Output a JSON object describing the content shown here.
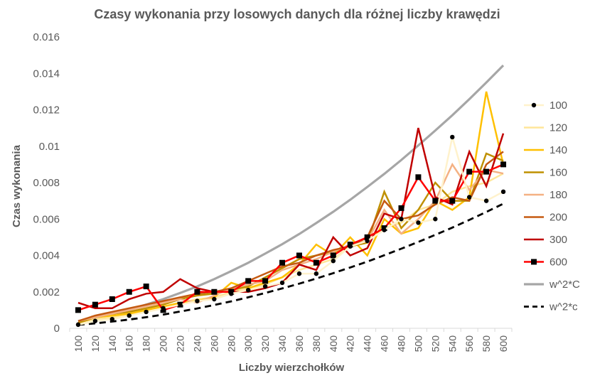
{
  "chart_data": {
    "type": "line",
    "title": "Czasy wykonania przy losowych danych dla różnej liczby krawędzi",
    "xlabel": "Liczby wierzchołków",
    "ylabel": "Czas wykonania",
    "ylim": [
      0,
      0.016
    ],
    "yticks": [
      "0",
      "0.002",
      "0.004",
      "0.006",
      "0.008",
      "0.01",
      "0.012",
      "0.014",
      "0.016"
    ],
    "yticks_values": [
      0,
      0.002,
      0.004,
      0.006,
      0.008,
      0.01,
      0.012,
      0.014,
      0.016
    ],
    "categories": [
      "100",
      "120",
      "140",
      "160",
      "180",
      "200",
      "220",
      "240",
      "260",
      "280",
      "300",
      "320",
      "340",
      "360",
      "380",
      "400",
      "420",
      "440",
      "460",
      "480",
      "500",
      "520",
      "540",
      "560",
      "580",
      "600"
    ],
    "grid": false,
    "legend_position": "right",
    "series": [
      {
        "name": "100",
        "color": "#000000",
        "style": "dots",
        "values": [
          0.0002,
          0.0004,
          0.0005,
          0.0007,
          0.0009,
          0.0011,
          0.0013,
          0.0015,
          0.0016,
          0.0019,
          0.0021,
          0.0023,
          0.0025,
          0.003,
          0.003,
          0.0037,
          0.0045,
          0.0048,
          0.0054,
          0.006,
          0.0058,
          0.006,
          0.0105,
          0.0072,
          0.007,
          0.0075
        ]
      },
      {
        "name": "120",
        "color": "#FFE699",
        "style": "line",
        "values": [
          0.0003,
          0.0005,
          0.0006,
          0.0008,
          0.0009,
          0.0011,
          0.0014,
          0.0016,
          0.0017,
          0.002,
          0.0022,
          0.0024,
          0.0028,
          0.0032,
          0.0035,
          0.0038,
          0.0045,
          0.0048,
          0.0055,
          0.0058,
          0.0065,
          0.0068,
          0.0075,
          0.0078,
          0.008,
          0.0085
        ]
      },
      {
        "name": "140",
        "color": "#FFC000",
        "style": "line",
        "values": [
          0.0003,
          0.0006,
          0.0007,
          0.0008,
          0.001,
          0.0012,
          0.0014,
          0.0015,
          0.0017,
          0.0025,
          0.0022,
          0.0025,
          0.0028,
          0.0035,
          0.0046,
          0.004,
          0.005,
          0.004,
          0.006,
          0.0052,
          0.0055,
          0.007,
          0.0065,
          0.0072,
          0.013,
          0.009
        ]
      },
      {
        "name": "160",
        "color": "#BF9000",
        "style": "line",
        "values": [
          0.0003,
          0.0006,
          0.0008,
          0.0009,
          0.0011,
          0.0013,
          0.0016,
          0.0018,
          0.0019,
          0.0021,
          0.0023,
          0.0028,
          0.0033,
          0.0038,
          0.004,
          0.0042,
          0.0045,
          0.0047,
          0.0075,
          0.0055,
          0.0065,
          0.008,
          0.007,
          0.007,
          0.0096,
          0.0092
        ]
      },
      {
        "name": "180",
        "color": "#F4B183",
        "style": "line",
        "values": [
          0.0004,
          0.0006,
          0.0008,
          0.001,
          0.0012,
          0.0014,
          0.0016,
          0.0014,
          0.0018,
          0.0022,
          0.0024,
          0.0026,
          0.0032,
          0.0035,
          0.0038,
          0.0042,
          0.0046,
          0.0048,
          0.0065,
          0.0052,
          0.006,
          0.007,
          0.009,
          0.0076,
          0.0087,
          0.0085
        ]
      },
      {
        "name": "200",
        "color": "#C55A11",
        "style": "line",
        "values": [
          0.0004,
          0.0007,
          0.0009,
          0.0011,
          0.0013,
          0.0015,
          0.0017,
          0.0019,
          0.002,
          0.0022,
          0.0026,
          0.003,
          0.0034,
          0.0036,
          0.004,
          0.0043,
          0.0045,
          0.005,
          0.007,
          0.006,
          0.0062,
          0.0068,
          0.0072,
          0.007,
          0.009,
          0.0097
        ]
      },
      {
        "name": "300",
        "color": "#C00000",
        "style": "line",
        "values": [
          0.0014,
          0.0011,
          0.0011,
          0.0016,
          0.0019,
          0.002,
          0.0027,
          0.0022,
          0.002,
          0.002,
          0.002,
          0.0022,
          0.0025,
          0.0035,
          0.0032,
          0.005,
          0.004,
          0.0044,
          0.0063,
          0.006,
          0.011,
          0.0072,
          0.0068,
          0.0097,
          0.0078,
          0.0107
        ]
      },
      {
        "name": "600",
        "color": "#FF0000",
        "style": "line-square",
        "values": [
          0.001,
          0.0013,
          0.0016,
          0.002,
          0.0023,
          0.001,
          0.0013,
          0.002,
          0.002,
          0.002,
          0.0026,
          0.0026,
          0.0036,
          0.004,
          0.0036,
          0.004,
          0.0046,
          0.005,
          0.0055,
          0.0066,
          0.0083,
          0.007,
          0.007,
          0.0086,
          0.0086,
          0.009
        ]
      },
      {
        "name": "w^2*C",
        "color": "#A6A6A6",
        "style": "thick",
        "values": [
          0.0004,
          0.00058,
          0.00078,
          0.00102,
          0.0013,
          0.0016,
          0.00194,
          0.0023,
          0.0027,
          0.00314,
          0.0036,
          0.0041,
          0.00462,
          0.00518,
          0.00578,
          0.0064,
          0.00706,
          0.00776,
          0.00848,
          0.00924,
          0.01004,
          0.01086,
          0.0117,
          0.01258,
          0.0135,
          0.01444
        ]
      },
      {
        "name": "w^2*c",
        "color": "#000000",
        "style": "dashed",
        "values": [
          0.00019,
          0.00027,
          0.00037,
          0.00048,
          0.00061,
          0.00075,
          0.00092,
          0.00109,
          0.00128,
          0.00148,
          0.0017,
          0.00194,
          0.00219,
          0.00245,
          0.00273,
          0.00303,
          0.00334,
          0.00366,
          0.00401,
          0.00437,
          0.00474,
          0.00513,
          0.00553,
          0.00595,
          0.00639,
          0.00684
        ]
      }
    ]
  }
}
